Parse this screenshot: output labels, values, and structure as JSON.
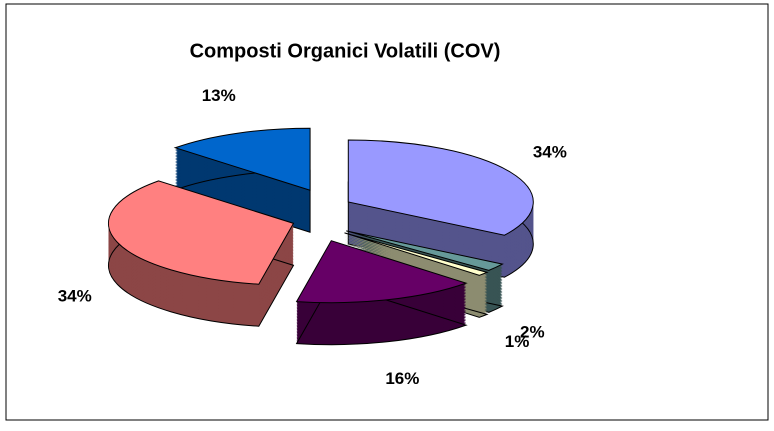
{
  "chart_data": {
    "type": "pie3d",
    "title": "Composti Organici Volatili (COV)",
    "values": [
      34,
      2,
      1,
      16,
      34,
      13
    ],
    "value_labels": [
      "34%",
      "2%",
      "1%",
      "16%",
      "34%",
      "13%"
    ],
    "colors": [
      "#9999ff",
      "#669999",
      "#ffffcc",
      "#660066",
      "#ff8080",
      "#0066cc"
    ]
  }
}
